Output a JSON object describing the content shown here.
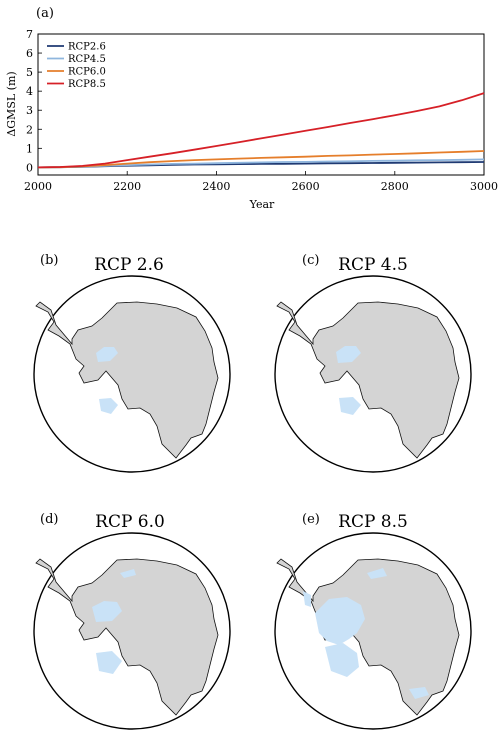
{
  "chart_data": [
    {
      "panel_label": "(a)",
      "type": "line",
      "xlabel": "Year",
      "ylabel": "ΔGMSL (m)",
      "xlim": [
        2000,
        3000
      ],
      "ylim": [
        -0.4,
        7
      ],
      "xticks": [
        "2000",
        "2200",
        "2400",
        "2600",
        "2800",
        "3000"
      ],
      "yticks": [
        "0",
        "1",
        "2",
        "3",
        "4",
        "5",
        "6",
        "7"
      ],
      "legend_position": "top-left",
      "grid": false,
      "x": [
        2000,
        2050,
        2100,
        2150,
        2200,
        2250,
        2300,
        2350,
        2400,
        2450,
        2500,
        2550,
        2600,
        2650,
        2700,
        2750,
        2800,
        2850,
        2900,
        2950,
        3000
      ],
      "series": [
        {
          "name": "RCP2.6",
          "color": "#1f3a73",
          "values": [
            0,
            0.01,
            0.03,
            0.06,
            0.09,
            0.11,
            0.13,
            0.15,
            0.16,
            0.17,
            0.18,
            0.19,
            0.2,
            0.21,
            0.22,
            0.23,
            0.24,
            0.25,
            0.26,
            0.27,
            0.28
          ]
        },
        {
          "name": "RCP4.5",
          "color": "#8fb6de",
          "values": [
            0,
            0.01,
            0.04,
            0.08,
            0.12,
            0.15,
            0.18,
            0.2,
            0.22,
            0.24,
            0.26,
            0.28,
            0.29,
            0.31,
            0.32,
            0.34,
            0.35,
            0.37,
            0.38,
            0.4,
            0.42
          ]
        },
        {
          "name": "RCP6.0",
          "color": "#e57e2b",
          "values": [
            0,
            0.01,
            0.05,
            0.12,
            0.2,
            0.27,
            0.33,
            0.38,
            0.42,
            0.46,
            0.5,
            0.53,
            0.56,
            0.6,
            0.63,
            0.67,
            0.7,
            0.74,
            0.78,
            0.82,
            0.86
          ]
        },
        {
          "name": "RCP8.5",
          "color": "#d62027",
          "values": [
            0,
            0.02,
            0.08,
            0.2,
            0.38,
            0.56,
            0.74,
            0.93,
            1.12,
            1.32,
            1.52,
            1.72,
            1.92,
            2.12,
            2.33,
            2.53,
            2.74,
            2.96,
            3.2,
            3.52,
            3.9
          ]
        }
      ]
    },
    {
      "panel_label": "(b)",
      "title": "RCP 2.6",
      "type": "map"
    },
    {
      "panel_label": "(c)",
      "title": "RCP 4.5",
      "type": "map"
    },
    {
      "panel_label": "(d)",
      "title": "RCP 6.0",
      "type": "map"
    },
    {
      "panel_label": "(e)",
      "title": "RCP 8.5",
      "type": "map"
    }
  ],
  "colors": {
    "ice_sheet": "#d4d4d4",
    "ice_loss": "#c9e2f7",
    "coastline": "#000000"
  }
}
